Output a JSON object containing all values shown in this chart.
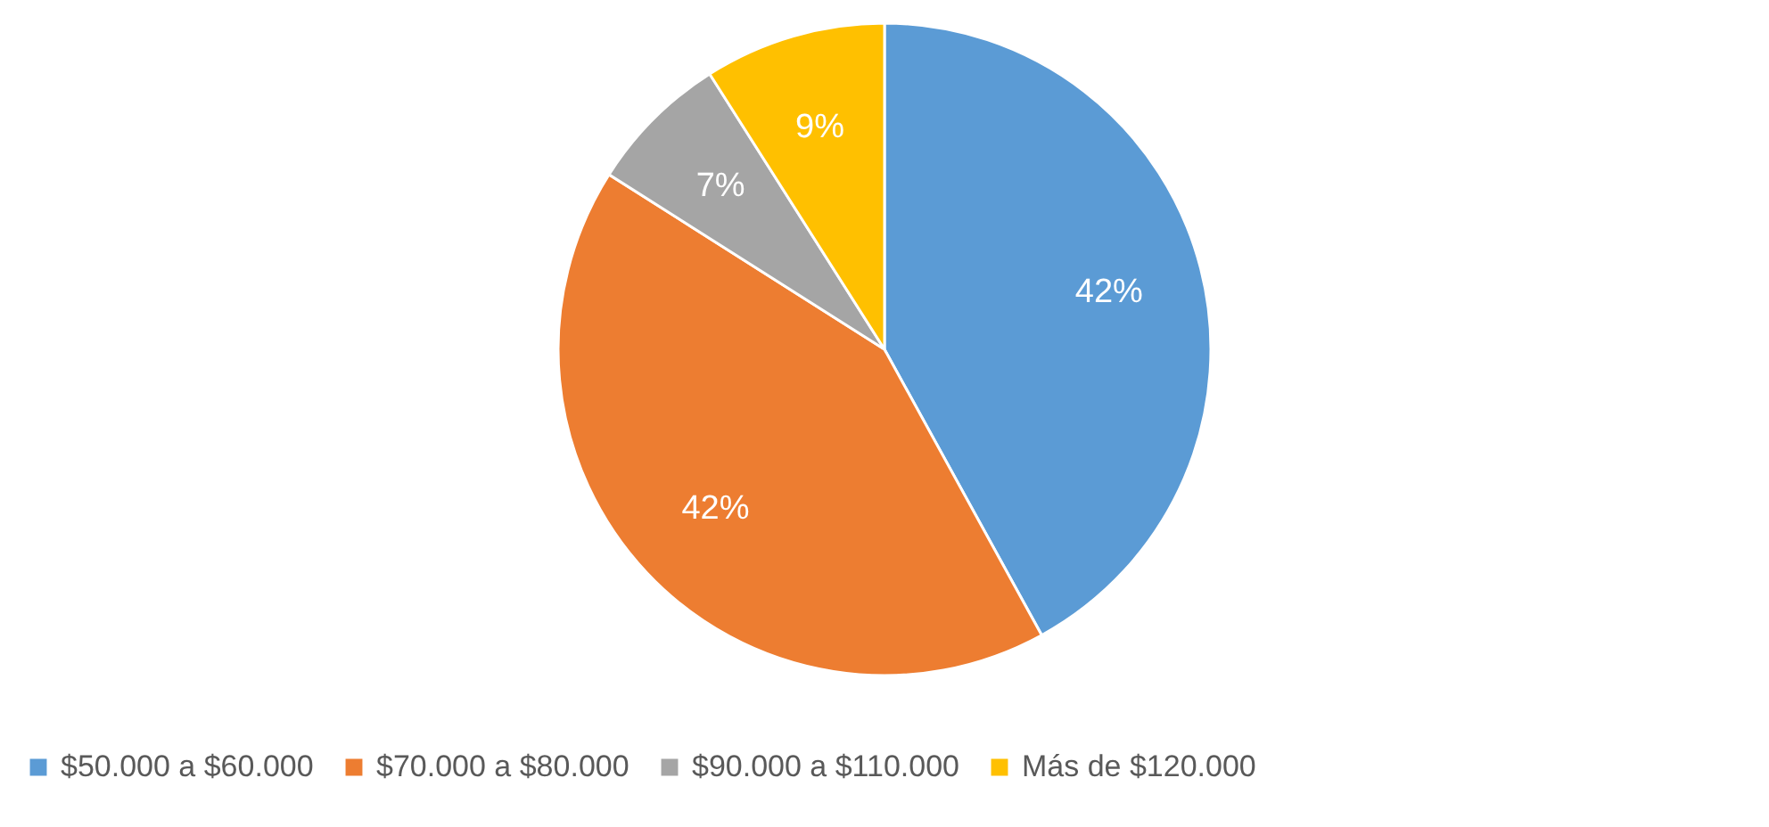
{
  "chart_data": {
    "type": "pie",
    "categories": [
      "$50.000 a $60.000",
      "$70.000 a $80.000",
      "$90.000 a $110.000",
      "Más de $120.000"
    ],
    "values": [
      42,
      42,
      7,
      9
    ],
    "colors": [
      "#5b9bd5",
      "#ed7d31",
      "#a5a5a5",
      "#ffc000"
    ],
    "value_labels": [
      "42%",
      "42%",
      "7%",
      "9%"
    ],
    "legend": "bottom"
  }
}
